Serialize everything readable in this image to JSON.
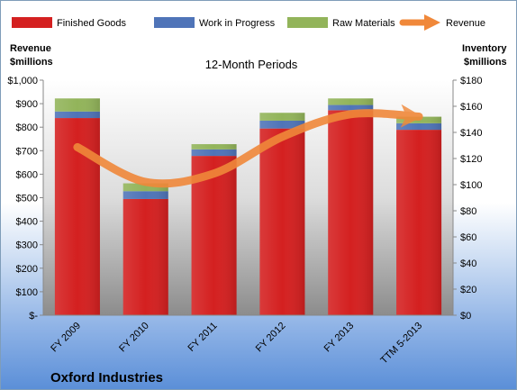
{
  "chart_data": {
    "type": "bar",
    "subtitle": "12-Month Periods",
    "company": "Oxford Industries",
    "categories": [
      "FY 2009",
      "FY 2010",
      "FY 2011",
      "FY 2012",
      "FY 2013",
      "TTM 5-2013"
    ],
    "stacked": true,
    "left_axis": {
      "title_line1": "Revenue",
      "title_line2": "$millions",
      "ylim": [
        0,
        1000
      ],
      "ticks": [
        0,
        100,
        200,
        300,
        400,
        500,
        600,
        700,
        800,
        900,
        1000
      ],
      "tick_labels": [
        "$-",
        "$100",
        "$200",
        "$300",
        "$400",
        "$500",
        "$600",
        "$700",
        "$800",
        "$900",
        "$1,000"
      ]
    },
    "right_axis": {
      "title_line1": "Inventory",
      "title_line2": "$millions",
      "ylim": [
        0,
        180
      ],
      "ticks": [
        0,
        20,
        40,
        60,
        80,
        100,
        120,
        140,
        160,
        180
      ],
      "tick_labels": [
        "$0",
        "$20",
        "$40",
        "$60",
        "$80",
        "$100",
        "$120",
        "$140",
        "$160",
        "$180"
      ]
    },
    "series": [
      {
        "name": "Finished Goods",
        "axis": "right",
        "color": "#d42020",
        "values": [
          151,
          89,
          122,
          143,
          157,
          142
        ]
      },
      {
        "name": "Work in Progress",
        "axis": "right",
        "color": "#4f74b8",
        "values": [
          5,
          6,
          5,
          6,
          4,
          5
        ]
      },
      {
        "name": "Raw Materials",
        "axis": "right",
        "color": "#92b45a",
        "values": [
          10,
          6,
          4,
          6,
          5,
          5
        ]
      }
    ],
    "line_series": {
      "name": "Revenue",
      "axis": "left",
      "color": "#f0883a",
      "values": [
        715,
        567,
        603,
        759,
        855,
        845
      ]
    },
    "legend_position": "top",
    "grid": false
  }
}
